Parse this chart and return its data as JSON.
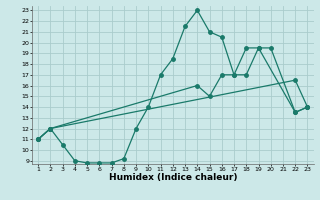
{
  "title": "",
  "xlabel": "Humidex (Indice chaleur)",
  "bg_color": "#cce8e8",
  "grid_color": "#aacccc",
  "line_color": "#1a7a6a",
  "xlim": [
    0.5,
    23.5
  ],
  "ylim": [
    8.7,
    23.4
  ],
  "xticks": [
    1,
    2,
    3,
    4,
    5,
    6,
    7,
    8,
    9,
    10,
    11,
    12,
    13,
    14,
    15,
    16,
    17,
    18,
    19,
    20,
    21,
    22,
    23
  ],
  "yticks": [
    9,
    10,
    11,
    12,
    13,
    14,
    15,
    16,
    17,
    18,
    19,
    20,
    21,
    22,
    23
  ],
  "line1_x": [
    1,
    2,
    3,
    4,
    5,
    6,
    7,
    8,
    9,
    10,
    11,
    12,
    13,
    14,
    15,
    16,
    17,
    18,
    19,
    20,
    22,
    23
  ],
  "line1_y": [
    11,
    12,
    10.5,
    9,
    8.8,
    8.8,
    8.8,
    9.2,
    12,
    14,
    17,
    18.5,
    21.5,
    23,
    21,
    20.5,
    17,
    17,
    19.5,
    19.5,
    13.5,
    14
  ],
  "line2_x": [
    1,
    2,
    22,
    23
  ],
  "line2_y": [
    11,
    12,
    16.5,
    14
  ],
  "line3_x": [
    1,
    2,
    14,
    15,
    16,
    17,
    18,
    19,
    22,
    23
  ],
  "line3_y": [
    11,
    12,
    16,
    15,
    17,
    17,
    19.5,
    19.5,
    13.5,
    14
  ]
}
